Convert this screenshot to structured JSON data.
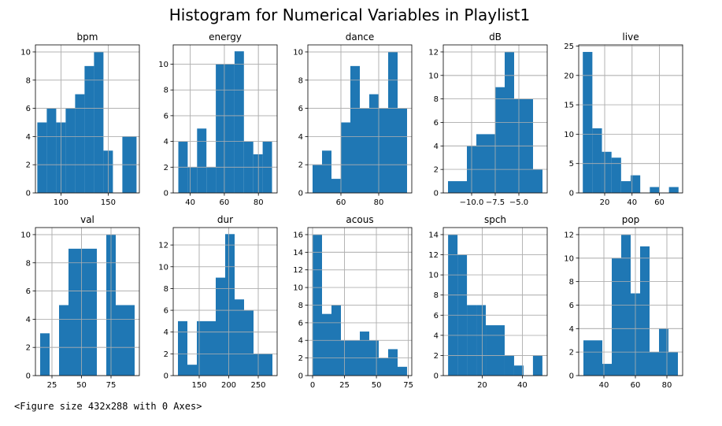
{
  "figure_title": "Histogram for Numerical Variables in Playlist1",
  "footer_text": "<Figure size 432x288 with 0 Axes>",
  "bar_color": "#1f77b4",
  "chart_data": [
    {
      "type": "bar",
      "title": "bpm",
      "grid": true,
      "bins": [
        [
          75,
          85,
          5
        ],
        [
          85,
          95,
          6
        ],
        [
          95,
          105,
          5
        ],
        [
          105,
          115,
          6
        ],
        [
          115,
          125,
          7
        ],
        [
          125,
          135,
          9
        ],
        [
          135,
          145,
          10
        ],
        [
          145,
          155,
          3
        ],
        [
          155,
          165,
          0
        ],
        [
          165,
          180,
          4
        ]
      ],
      "xlim": [
        73,
        183
      ],
      "ylim": [
        0,
        10.5
      ],
      "xticks": [
        100,
        150
      ],
      "xtick_labels": [
        "100",
        "150"
      ],
      "yticks": [
        0,
        2,
        4,
        6,
        8,
        10
      ],
      "ytick_labels": [
        "0",
        "2",
        "4",
        "6",
        "8",
        "10"
      ]
    },
    {
      "type": "bar",
      "title": "energy",
      "grid": true,
      "bins": [
        [
          33,
          38.5,
          4
        ],
        [
          38.5,
          44,
          2
        ],
        [
          44,
          49.5,
          5
        ],
        [
          49.5,
          55,
          2
        ],
        [
          55,
          60.5,
          10
        ],
        [
          60.5,
          66,
          10
        ],
        [
          66,
          71.5,
          11
        ],
        [
          71.5,
          77,
          4
        ],
        [
          77,
          82.5,
          3
        ],
        [
          82.5,
          88,
          4
        ]
      ],
      "xlim": [
        30,
        91
      ],
      "ylim": [
        0,
        11.5
      ],
      "xticks": [
        40,
        60,
        80
      ],
      "xtick_labels": [
        "40",
        "60",
        "80"
      ],
      "yticks": [
        0,
        2,
        4,
        6,
        8,
        10
      ],
      "ytick_labels": [
        "0",
        "2",
        "4",
        "6",
        "8",
        "10"
      ]
    },
    {
      "type": "bar",
      "title": "dance",
      "grid": true,
      "bins": [
        [
          45,
          50,
          2
        ],
        [
          50,
          55,
          3
        ],
        [
          55,
          60,
          1
        ],
        [
          60,
          65,
          5
        ],
        [
          65,
          70,
          9
        ],
        [
          70,
          75,
          6
        ],
        [
          75,
          80,
          7
        ],
        [
          80,
          85,
          6
        ],
        [
          85,
          90,
          10
        ],
        [
          90,
          95,
          6
        ]
      ],
      "xlim": [
        42.5,
        97.5
      ],
      "ylim": [
        0,
        10.5
      ],
      "xticks": [
        60,
        80
      ],
      "xtick_labels": [
        "60",
        "80"
      ],
      "yticks": [
        0,
        2,
        4,
        6,
        8,
        10
      ],
      "ytick_labels": [
        "0",
        "2",
        "4",
        "6",
        "8",
        "10"
      ]
    },
    {
      "type": "bar",
      "title": "dB",
      "grid": true,
      "bins": [
        [
          -12.5,
          -11.5,
          1
        ],
        [
          -11.5,
          -10.5,
          1
        ],
        [
          -10.5,
          -9.5,
          4
        ],
        [
          -9.5,
          -8.5,
          5
        ],
        [
          -8.5,
          -7.5,
          5
        ],
        [
          -7.5,
          -6.5,
          9
        ],
        [
          -6.5,
          -5.5,
          12
        ],
        [
          -5.5,
          -4.5,
          8
        ],
        [
          -4.5,
          -3.5,
          8
        ],
        [
          -3.5,
          -2.5,
          2
        ]
      ],
      "xlim": [
        -13,
        -2
      ],
      "ylim": [
        0,
        12.6
      ],
      "xticks": [
        -10,
        -7.5,
        -5
      ],
      "xtick_labels": [
        "−10.0",
        "−7.5",
        "−5.0"
      ],
      "yticks": [
        0,
        2,
        4,
        6,
        8,
        10,
        12
      ],
      "ytick_labels": [
        "0",
        "2",
        "4",
        "6",
        "8",
        "10",
        "12"
      ]
    },
    {
      "type": "bar",
      "title": "live",
      "grid": true,
      "bins": [
        [
          4,
          11,
          24
        ],
        [
          11,
          18,
          11
        ],
        [
          18,
          25,
          7
        ],
        [
          25,
          32,
          6
        ],
        [
          32,
          39,
          2
        ],
        [
          39,
          46,
          3
        ],
        [
          46,
          53,
          0
        ],
        [
          53,
          60,
          1
        ],
        [
          60,
          67,
          0
        ],
        [
          67,
          74,
          1
        ]
      ],
      "xlim": [
        1,
        77
      ],
      "ylim": [
        0,
        25.2
      ],
      "xticks": [
        20,
        40,
        60
      ],
      "xtick_labels": [
        "20",
        "40",
        "60"
      ],
      "yticks": [
        0,
        5,
        10,
        15,
        20,
        25
      ],
      "ytick_labels": [
        "0",
        "5",
        "10",
        "15",
        "20",
        "25"
      ]
    },
    {
      "type": "bar",
      "title": "val",
      "grid": true,
      "bins": [
        [
          15,
          23,
          3
        ],
        [
          23,
          31,
          0
        ],
        [
          31,
          39,
          5
        ],
        [
          39,
          47,
          9
        ],
        [
          47,
          55,
          9
        ],
        [
          55,
          63,
          9
        ],
        [
          63,
          71,
          0
        ],
        [
          71,
          79,
          10
        ],
        [
          79,
          87,
          5
        ],
        [
          87,
          95,
          5
        ]
      ],
      "xlim": [
        11,
        99
      ],
      "ylim": [
        0,
        10.5
      ],
      "xticks": [
        25,
        50,
        75
      ],
      "xtick_labels": [
        "25",
        "50",
        "75"
      ],
      "yticks": [
        0,
        2,
        4,
        6,
        8,
        10
      ],
      "ytick_labels": [
        "0",
        "2",
        "4",
        "6",
        "8",
        "10"
      ]
    },
    {
      "type": "bar",
      "title": "dur",
      "grid": true,
      "bins": [
        [
          114,
          130,
          5
        ],
        [
          130,
          146,
          1
        ],
        [
          146,
          162,
          5
        ],
        [
          162,
          178,
          5
        ],
        [
          178,
          194,
          9
        ],
        [
          194,
          210,
          13
        ],
        [
          210,
          226,
          7
        ],
        [
          226,
          242,
          6
        ],
        [
          242,
          258,
          2
        ],
        [
          258,
          274,
          2
        ]
      ],
      "xlim": [
        106,
        282
      ],
      "ylim": [
        0,
        13.6
      ],
      "xticks": [
        150,
        200,
        250
      ],
      "xtick_labels": [
        "150",
        "200",
        "250"
      ],
      "yticks": [
        0,
        2,
        4,
        6,
        8,
        10,
        12
      ],
      "ytick_labels": [
        "0",
        "2",
        "4",
        "6",
        "8",
        "10",
        "12"
      ]
    },
    {
      "type": "bar",
      "title": "acous",
      "grid": true,
      "bins": [
        [
          0,
          7.4,
          16
        ],
        [
          7.4,
          14.8,
          7
        ],
        [
          14.8,
          22.2,
          8
        ],
        [
          22.2,
          29.6,
          4
        ],
        [
          29.6,
          37,
          4
        ],
        [
          37,
          44.4,
          5
        ],
        [
          44.4,
          51.8,
          4
        ],
        [
          51.8,
          59.2,
          2
        ],
        [
          59.2,
          66.6,
          3
        ],
        [
          66.6,
          74,
          1
        ]
      ],
      "xlim": [
        -3.7,
        77.7
      ],
      "ylim": [
        0,
        16.8
      ],
      "xticks": [
        0,
        25,
        50,
        75
      ],
      "xtick_labels": [
        "0",
        "25",
        "50",
        "75"
      ],
      "yticks": [
        0,
        2,
        4,
        6,
        8,
        10,
        12,
        14,
        16
      ],
      "ytick_labels": [
        "0",
        "2",
        "4",
        "6",
        "8",
        "10",
        "12",
        "14",
        "16"
      ]
    },
    {
      "type": "bar",
      "title": "spch",
      "grid": true,
      "bins": [
        [
          3,
          7.7,
          14
        ],
        [
          7.7,
          12.4,
          12
        ],
        [
          12.4,
          17.1,
          7
        ],
        [
          17.1,
          21.8,
          7
        ],
        [
          21.8,
          26.5,
          5
        ],
        [
          26.5,
          31.2,
          5
        ],
        [
          31.2,
          35.9,
          2
        ],
        [
          35.9,
          40.6,
          1
        ],
        [
          40.6,
          45.3,
          0
        ],
        [
          45.3,
          50,
          2
        ]
      ],
      "xlim": [
        0.6,
        52.4
      ],
      "ylim": [
        0,
        14.7
      ],
      "xticks": [
        20,
        40
      ],
      "xtick_labels": [
        "20",
        "40"
      ],
      "yticks": [
        0,
        2,
        4,
        6,
        8,
        10,
        12,
        14
      ],
      "ytick_labels": [
        "0",
        "2",
        "4",
        "6",
        "8",
        "10",
        "12",
        "14"
      ]
    },
    {
      "type": "bar",
      "title": "pop",
      "grid": true,
      "bins": [
        [
          27,
          33,
          3
        ],
        [
          33,
          39,
          3
        ],
        [
          39,
          45,
          1
        ],
        [
          45,
          51,
          10
        ],
        [
          51,
          57,
          12
        ],
        [
          57,
          63,
          7
        ],
        [
          63,
          69,
          11
        ],
        [
          69,
          75,
          2
        ],
        [
          75,
          81,
          4
        ],
        [
          81,
          87,
          2
        ]
      ],
      "xlim": [
        24,
        90
      ],
      "ylim": [
        0,
        12.6
      ],
      "xticks": [
        40,
        60,
        80
      ],
      "xtick_labels": [
        "40",
        "60",
        "80"
      ],
      "yticks": [
        0,
        2,
        4,
        6,
        8,
        10,
        12
      ],
      "ytick_labels": [
        "0",
        "2",
        "4",
        "6",
        "8",
        "10",
        "12"
      ]
    }
  ]
}
